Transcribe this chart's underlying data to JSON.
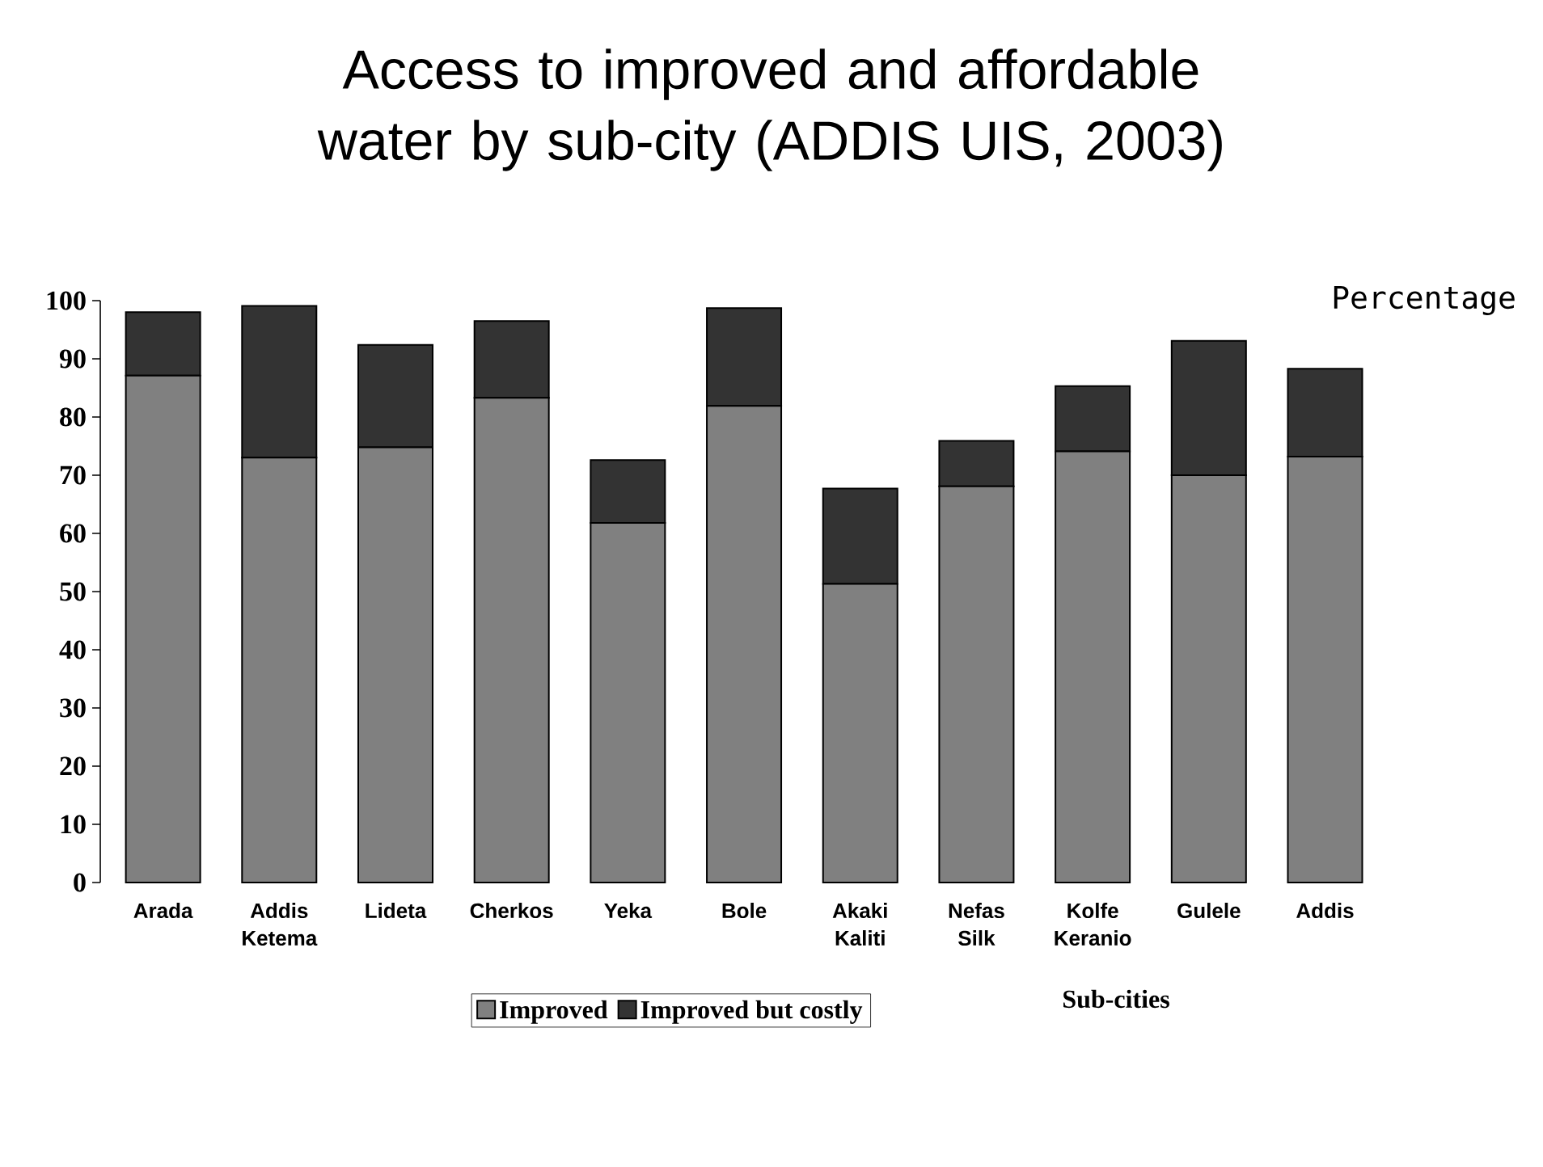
{
  "chart_data": {
    "type": "bar",
    "stacked": true,
    "title": "Access to improved and affordable water by sub-city (ADDIS UIS, 2003)",
    "xlabel": "Sub-cities",
    "ylabel": "Percentage",
    "categories": [
      "Arada",
      "Addis Ketema",
      "Lideta",
      "Cherkos",
      "Yeka",
      "Bole",
      "Akaki Kaliti",
      "Nefas Silk",
      "Kolfe Keranio",
      "Gulele",
      "Addis"
    ],
    "series": [
      {
        "name": "Improved",
        "color": "#808080",
        "values": [
          87.1,
          73.0,
          74.8,
          83.3,
          61.8,
          81.9,
          51.3,
          68.1,
          74.1,
          70.0,
          73.2
        ]
      },
      {
        "name": "Improved but costly",
        "color": "#333333",
        "values": [
          10.9,
          26.1,
          17.6,
          13.2,
          10.8,
          16.8,
          16.4,
          7.8,
          11.2,
          23.1,
          15.1
        ]
      }
    ],
    "ylim": [
      0,
      100
    ],
    "yticks": [
      0,
      10,
      20,
      30,
      40,
      50,
      60,
      70,
      80,
      90,
      100
    ],
    "legend": "bottom"
  }
}
